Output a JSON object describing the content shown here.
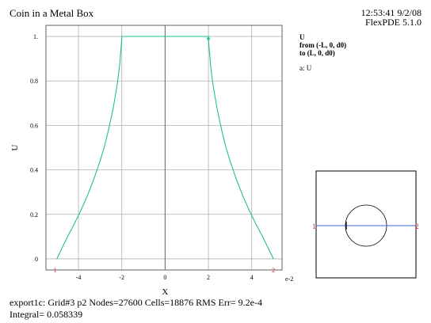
{
  "header": {
    "title": "Coin in a Metal Box",
    "timestamp": "12:53:41 9/2/08",
    "software": "FlexPDE 5.1.0"
  },
  "legend": {
    "variable": "U",
    "from_label": "from (-L, 0, d0)",
    "to_label": "to (L, 0, d0)",
    "series_label": "a: U"
  },
  "footer": {
    "line1": "export1c:  Grid#3  p2  Nodes=27600 Cells=18876 RMS Err= 9.2e-4",
    "line2": "Integral=  0.058339"
  },
  "inset": {
    "start_marker": "1",
    "end_marker": "2"
  },
  "colors": {
    "series": "#20c090",
    "grid": "#b0b0b0",
    "axis": "#606060",
    "marker": "#d02020",
    "cut_line": "#4060e0"
  },
  "chart_data": {
    "type": "line",
    "xlabel": "X",
    "ylabel": "U",
    "x_multiplier_label": "e-2",
    "xlim": [
      -5.5,
      5.4
    ],
    "ylim": [
      -0.05,
      1.05
    ],
    "x_ticks": [
      -4,
      -2,
      0,
      2,
      4
    ],
    "y_ticks": [
      0,
      0.2,
      0.4,
      0.6,
      0.8,
      1
    ],
    "x_tick_labels": [
      "-4",
      "-2",
      "0",
      "2",
      "4"
    ],
    "y_tick_labels": [
      "0",
      "0.2",
      "0.4",
      "0.6",
      "0.8",
      "1."
    ],
    "start_marker": "1",
    "end_marker": "2",
    "series": [
      {
        "x": [
          -5.0,
          -4.8,
          -4.5,
          -4.2,
          -3.9,
          -3.6,
          -3.3,
          -3.0,
          -2.8,
          -2.6,
          -2.4,
          -2.2,
          -2.1,
          -2.0,
          -2.0,
          0.0,
          2.0,
          2.0,
          2.1,
          2.2,
          2.4,
          2.6,
          2.8,
          3.0,
          3.3,
          3.6,
          3.9,
          4.2,
          4.5,
          4.8,
          5.0
        ],
        "y": [
          0.0,
          0.04,
          0.1,
          0.155,
          0.215,
          0.28,
          0.355,
          0.44,
          0.505,
          0.585,
          0.675,
          0.79,
          0.87,
          0.99,
          1.0,
          1.0,
          1.0,
          0.99,
          0.87,
          0.79,
          0.675,
          0.585,
          0.505,
          0.44,
          0.355,
          0.28,
          0.215,
          0.155,
          0.1,
          0.04,
          0.0
        ]
      }
    ],
    "point_marker": {
      "x": 2.0,
      "y": 0.99
    },
    "grid": true
  }
}
